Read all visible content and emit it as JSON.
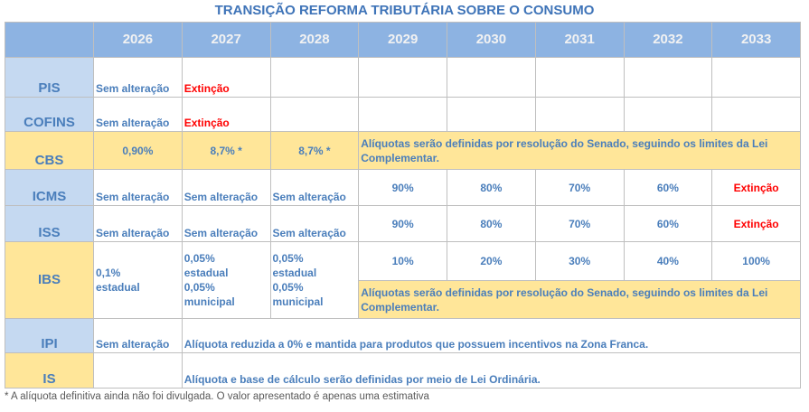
{
  "title": "TRANSIÇÃO REFORMA TRIBUTÁRIA SOBRE O CONSUMO",
  "years": [
    "2026",
    "2027",
    "2028",
    "2029",
    "2030",
    "2031",
    "2032",
    "2033"
  ],
  "rows": {
    "pis": {
      "label": "PIS",
      "cells": [
        "Sem alteração",
        "Extinção"
      ]
    },
    "cofins": {
      "label": "COFINS",
      "cells": [
        "Sem alteração",
        "Extinção"
      ]
    },
    "cbs": {
      "label": "CBS",
      "cells": [
        "0,90%",
        "8,7% *",
        "8,7% *"
      ],
      "note": "Alíquotas serão definidas por resolução do Senado, seguindo os limites da Lei Complementar."
    },
    "icms": {
      "label": "ICMS",
      "cells": [
        "Sem alteração",
        "Sem alteração",
        "Sem alteração",
        "90%",
        "80%",
        "70%",
        "60%",
        "Extinção"
      ]
    },
    "iss": {
      "label": "ISS",
      "cells": [
        "Sem alteração",
        "Sem alteração",
        "Sem alteração",
        "90%",
        "80%",
        "70%",
        "60%",
        "Extinção"
      ]
    },
    "ibs": {
      "label": "IBS",
      "cell_2026": "0,1% estadual",
      "cell_2027": [
        "0,05% estadual",
        "0,05% municipal"
      ],
      "cell_2028": [
        "0,05% estadual",
        "0,05% municipal"
      ],
      "cells": [
        "10%",
        "20%",
        "30%",
        "40%",
        "100%"
      ],
      "note": "Alíquotas serão definidas por resolução do Senado, seguindo os limites da Lei Complementar."
    },
    "ipi": {
      "label": "IPI",
      "cells": [
        "Sem alteração"
      ],
      "note": "Alíquota reduzida a 0% e mantida para produtos que possuem incentivos na Zona Franca."
    },
    "is": {
      "label": "IS",
      "note": "Alíquota e base de cálculo serão definidas por meio de Lei Ordinária."
    }
  },
  "footnote": "* A alíquota definitiva ainda não foi divulgada. O valor apresentado é apenas uma estimativa"
}
